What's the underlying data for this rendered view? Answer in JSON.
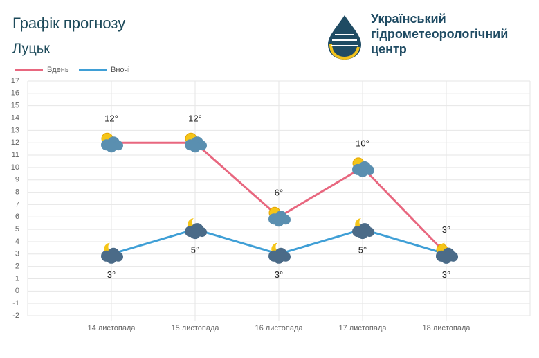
{
  "chart_data": {
    "type": "line",
    "title": "Графік прогнозу",
    "subtitle": "Луцьк",
    "categories": [
      "14 листопада",
      "15 листопада",
      "16 листопада",
      "17 листопада",
      "18 листопада"
    ],
    "series": [
      {
        "name": "Вдень",
        "color": "#e8677f",
        "values": [
          12,
          12,
          6,
          10,
          3
        ],
        "value_labels": [
          "12°",
          "12°",
          "6°",
          "10°",
          "3°"
        ]
      },
      {
        "name": "Вночі",
        "color": "#3f9fd6",
        "values": [
          3,
          5,
          3,
          5,
          3
        ],
        "value_labels": [
          "3°",
          "5°",
          "3°",
          "5°",
          "3°"
        ]
      }
    ],
    "ylim": [
      -2,
      17
    ],
    "yticks": [
      -2,
      -1,
      0,
      1,
      2,
      3,
      4,
      5,
      6,
      7,
      8,
      9,
      10,
      11,
      12,
      13,
      14,
      15,
      16,
      17
    ],
    "grid": true,
    "legend": "top-left"
  },
  "logo": {
    "lines": [
      "Український",
      "гідрометеорологічний",
      "центр"
    ]
  }
}
